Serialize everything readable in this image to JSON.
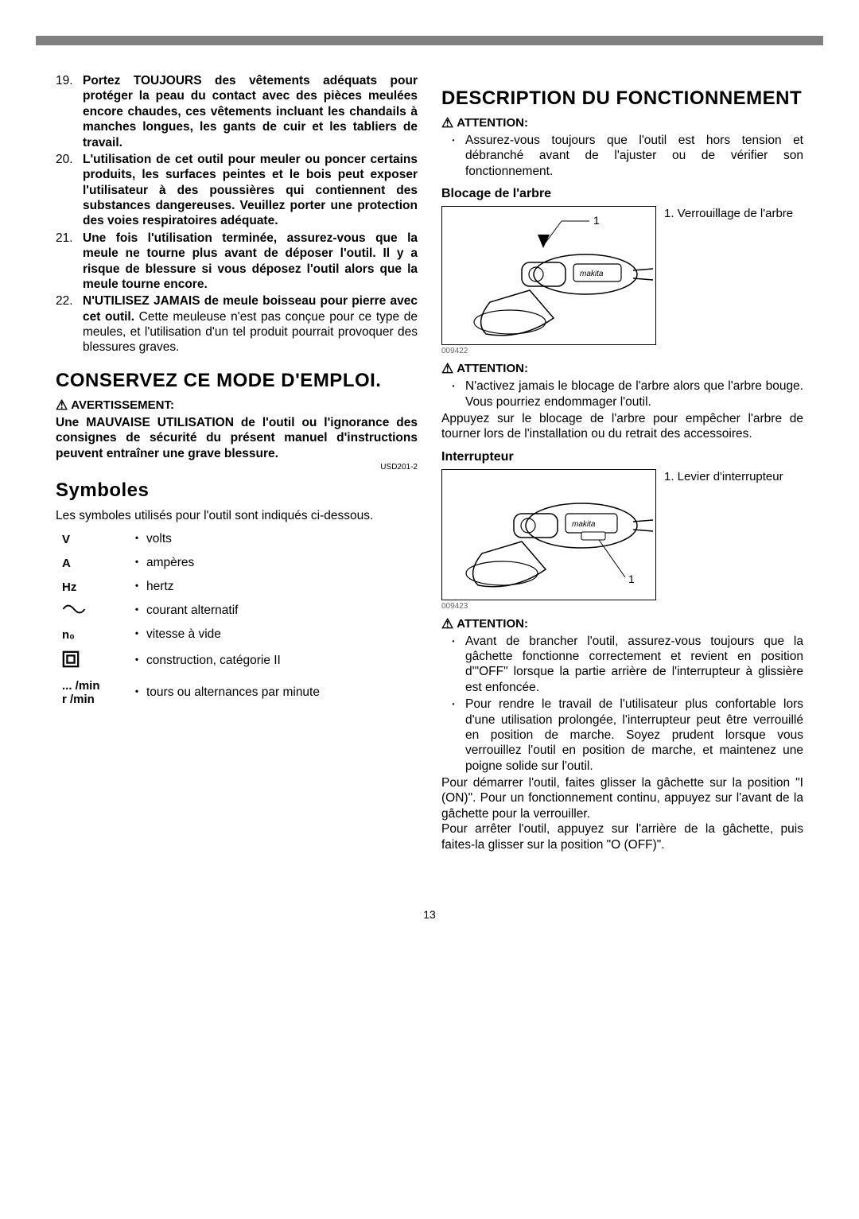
{
  "left": {
    "items": [
      {
        "n": "19.",
        "bold": true,
        "text": "Portez TOUJOURS des vêtements adéquats pour protéger la peau du contact avec des pièces meulées encore chaudes, ces vêtements incluant les chandails à manches longues, les gants de cuir et les tabliers de travail."
      },
      {
        "n": "20.",
        "bold": true,
        "text": "L'utilisation de cet outil pour meuler ou poncer certains produits, les surfaces peintes et le bois peut exposer l'utilisateur à des poussières qui contiennent des substances dangereuses. Veuillez porter une protection des voies respiratoires adéquate."
      },
      {
        "n": "21.",
        "bold": true,
        "text": "Une fois l'utilisation terminée, assurez-vous que la meule ne tourne plus avant de déposer l'outil. Il y a risque de blessure si vous déposez l'outil alors que la meule tourne encore."
      },
      {
        "n": "22.",
        "boldPrefix": "N'UTILISEZ JAMAIS de meule boisseau pour pierre avec cet outil.",
        "rest": " Cette meuleuse n'est pas conçue pour ce type de meules, et l'utilisation d'un tel produit pourrait provoquer des blessures graves."
      }
    ],
    "conserve": "CONSERVEZ CE MODE D'EMPLOI.",
    "avert_label": "AVERTISSEMENT:",
    "avert_body": "Une MAUVAISE UTILISATION de l'outil ou l'ignorance des consignes de sécurité du présent manuel d'instructions peuvent entraîner une grave blessure.",
    "code": "USD201-2",
    "symboles_title": "Symboles",
    "symboles_intro": "Les symboles utilisés pour l'outil sont indiqués ci-dessous.",
    "symbols": [
      {
        "sym": "V",
        "type": "text",
        "desc": "volts"
      },
      {
        "sym": "A",
        "type": "text",
        "desc": "ampères"
      },
      {
        "sym": "Hz",
        "type": "text",
        "desc": "hertz"
      },
      {
        "sym": "sine",
        "type": "sine",
        "desc": "courant alternatif"
      },
      {
        "sym": "n₀",
        "type": "text",
        "desc": "vitesse à vide"
      },
      {
        "sym": "dblsq",
        "type": "dblsq",
        "desc": "construction, catégorie II"
      },
      {
        "sym": "... /min\nr /min",
        "type": "text",
        "desc": "tours ou alternances par minute"
      }
    ]
  },
  "right": {
    "title": "DESCRIPTION DU FONCTIONNEMENT",
    "att_label": "ATTENTION:",
    "att1_bullet": "Assurez-vous toujours que l'outil est hors tension et débranché avant de l'ajuster ou de vérifier son fonctionnement.",
    "blocage_title": "Blocage de l'arbre",
    "fig1_caption": "1. Verrouillage de l'arbre",
    "fig1_id": "009422",
    "att2_bullet": "N'activez jamais le blocage de l'arbre alors que l'arbre bouge.   Vous pourriez endommager l'outil.",
    "att2_para": "Appuyez sur le blocage de l'arbre pour empêcher l'arbre de tourner lors de l'installation ou du retrait des accessoires.",
    "interrupteur_title": "Interrupteur",
    "fig2_caption": "1. Levier d'interrupteur",
    "fig2_id": "009423",
    "att3_bullets": [
      "Avant de brancher l'outil, assurez-vous toujours que la gâchette fonctionne correctement et revient en position d'\"OFF\" lorsque la partie arrière de l'interrupteur à glissière est enfoncée.",
      "Pour rendre le travail de l'utilisateur plus confortable lors d'une utilisation prolongée, l'interrupteur peut être verrouillé en position de marche. Soyez prudent lorsque vous verrouillez l'outil en position de marche, et maintenez une poigne solide sur l'outil."
    ],
    "para1": "Pour démarrer l'outil, faites glisser la gâchette sur la position \"I (ON)\". Pour un fonctionnement continu, appuyez sur l'avant de la gâchette pour la verrouiller.",
    "para2": "Pour arrêter l'outil, appuyez sur l'arrière de la gâchette, puis faites-la glisser sur la position \"O (OFF)\"."
  },
  "page_number": "13"
}
